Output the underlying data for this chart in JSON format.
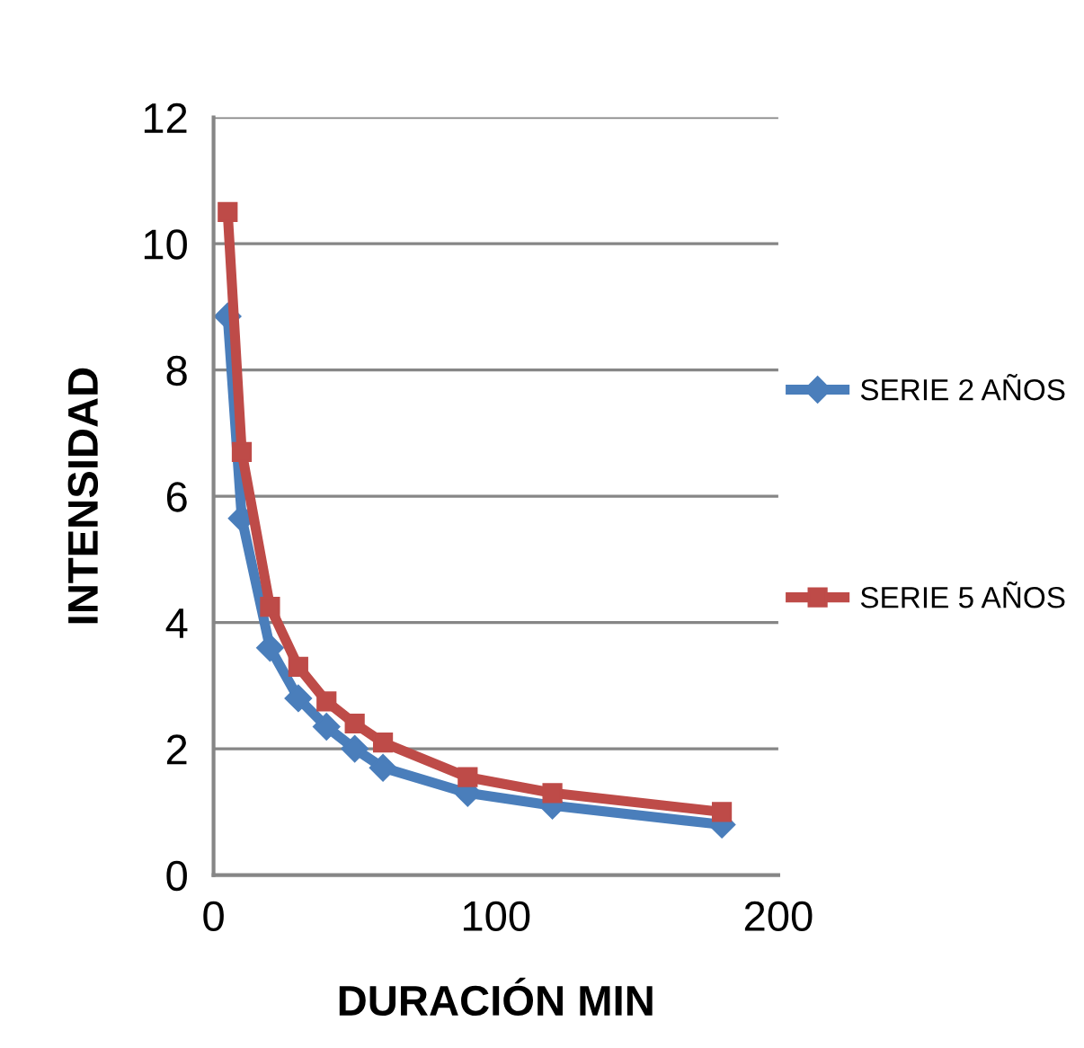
{
  "chart_data": {
    "type": "line",
    "xlabel": "DURACIÓN MIN",
    "ylabel": "INTENSIDAD",
    "x": [
      5,
      10,
      20,
      30,
      40,
      50,
      60,
      90,
      120,
      180
    ],
    "xlim": [
      0,
      200
    ],
    "xticks": [
      0,
      100,
      200
    ],
    "ylim": [
      0,
      12
    ],
    "yticks": [
      0,
      2,
      4,
      6,
      8,
      10,
      12
    ],
    "grid": "y",
    "legend": "right",
    "series": [
      {
        "name": "SERIE 2 AÑOS",
        "color": "#4a7ebb",
        "marker": "diamond",
        "values": [
          8.85,
          5.65,
          3.6,
          2.8,
          2.35,
          2.0,
          1.7,
          1.3,
          1.1,
          0.8
        ]
      },
      {
        "name": "SERIE 5 AÑOS",
        "color": "#be4b48",
        "marker": "square",
        "values": [
          10.5,
          6.7,
          4.25,
          3.3,
          2.75,
          2.4,
          2.1,
          1.55,
          1.3,
          1.0
        ]
      }
    ]
  }
}
